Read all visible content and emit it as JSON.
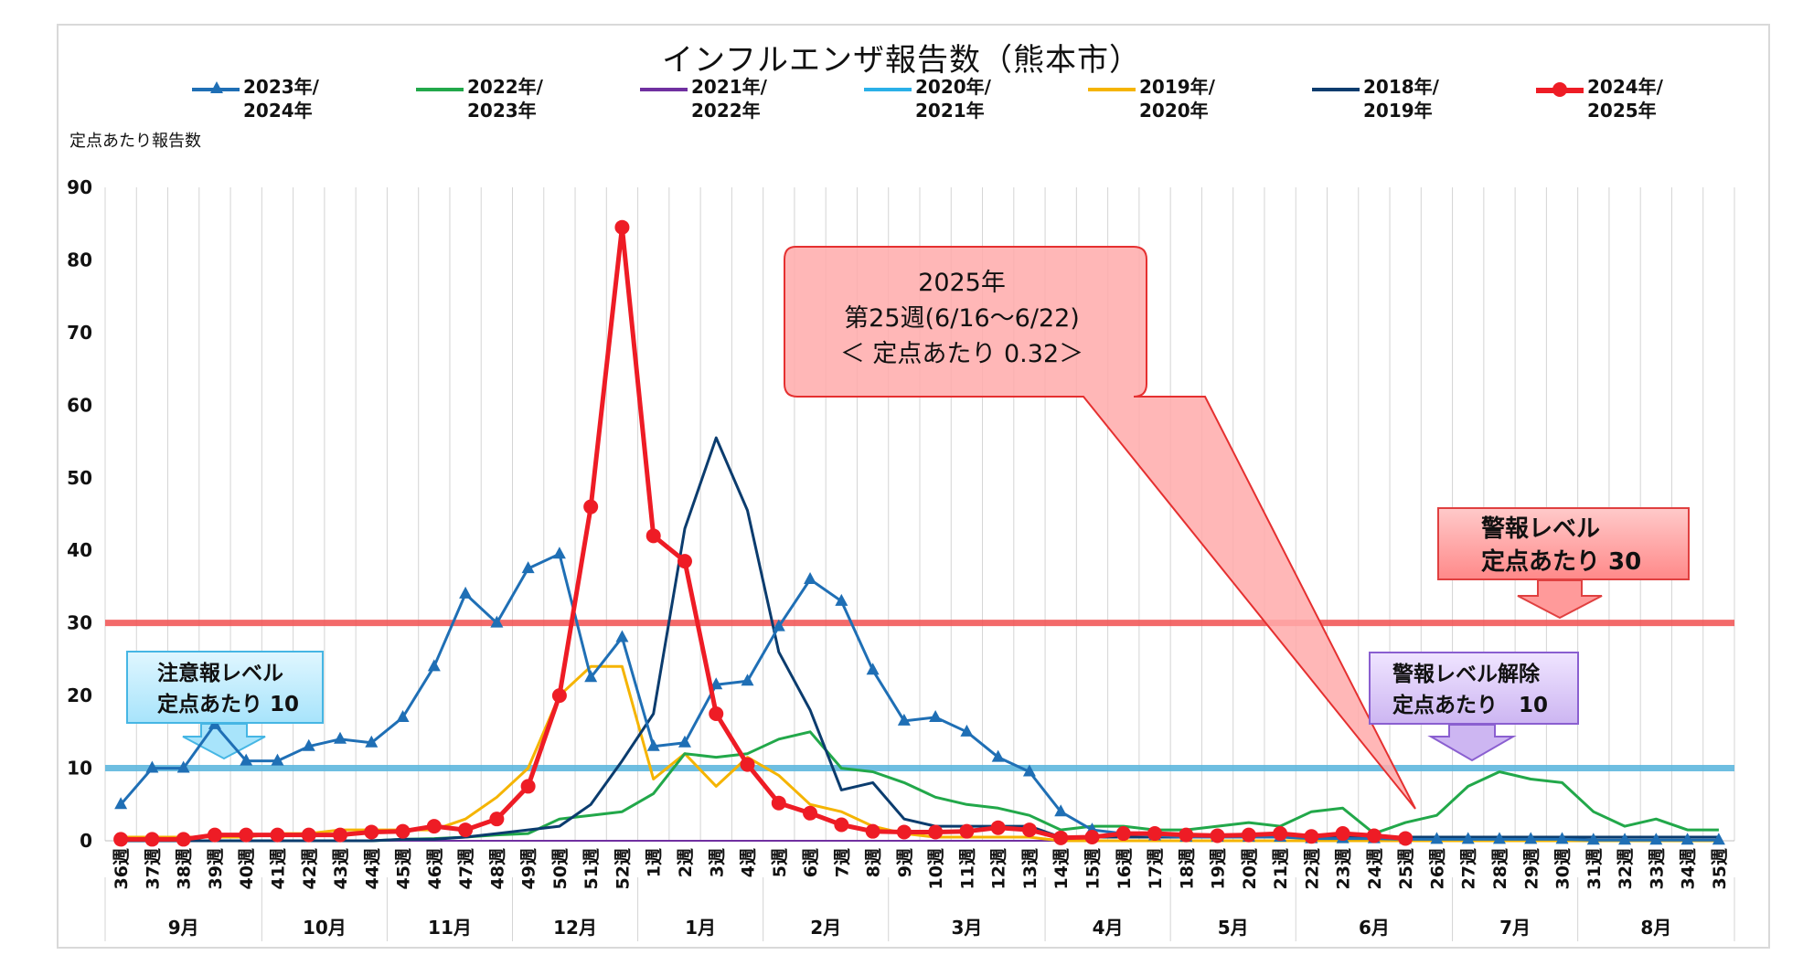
{
  "chart_data": {
    "type": "line",
    "title": "インフルエンザ報告数（熊本市）",
    "ylabel": "定点あたり報告数",
    "ylim": [
      0,
      90
    ],
    "yticks": [
      0,
      10,
      20,
      30,
      40,
      50,
      60,
      70,
      80,
      90
    ],
    "grid": "vertical",
    "legend_position": "top",
    "categories": [
      "36週",
      "37週",
      "38週",
      "39週",
      "40週",
      "41週",
      "42週",
      "43週",
      "44週",
      "45週",
      "46週",
      "47週",
      "48週",
      "49週",
      "50週",
      "51週",
      "52週",
      "1週",
      "2週",
      "3週",
      "4週",
      "5週",
      "6週",
      "7週",
      "8週",
      "9週",
      "10週",
      "11週",
      "12週",
      "13週",
      "14週",
      "15週",
      "16週",
      "17週",
      "18週",
      "19週",
      "20週",
      "21週",
      "22週",
      "23週",
      "24週",
      "25週",
      "26週",
      "27週",
      "28週",
      "29週",
      "30週",
      "31週",
      "32週",
      "33週",
      "34週",
      "35週"
    ],
    "months": [
      {
        "label": "9月",
        "start": 0,
        "end": 4
      },
      {
        "label": "10月",
        "start": 5,
        "end": 8
      },
      {
        "label": "11月",
        "start": 9,
        "end": 12
      },
      {
        "label": "12月",
        "start": 13,
        "end": 16
      },
      {
        "label": "1月",
        "start": 17,
        "end": 20
      },
      {
        "label": "2月",
        "start": 21,
        "end": 24
      },
      {
        "label": "3月",
        "start": 25,
        "end": 29
      },
      {
        "label": "4月",
        "start": 30,
        "end": 33
      },
      {
        "label": "5月",
        "start": 34,
        "end": 37
      },
      {
        "label": "6月",
        "start": 38,
        "end": 42
      },
      {
        "label": "7月",
        "start": 43,
        "end": 46
      },
      {
        "label": "8月",
        "start": 47,
        "end": 51
      }
    ],
    "series": [
      {
        "name": "2023年/\n2024年",
        "color": "#1f6fb5",
        "marker": "triangle",
        "width": 3,
        "values": [
          5,
          10,
          10,
          16,
          11,
          11,
          13,
          14,
          13.5,
          17,
          24,
          34,
          30,
          37.5,
          39.5,
          22.5,
          28,
          13,
          13.5,
          21.5,
          22,
          29.5,
          36,
          33,
          23.5,
          16.5,
          17,
          15,
          11.5,
          9.5,
          4,
          1.5,
          1,
          0.7,
          0.5,
          0.5,
          0.5,
          0.5,
          0.3,
          0.3,
          0.3,
          0.2,
          0.2,
          0.2,
          0.2,
          0.2,
          0.2,
          0.1,
          0.1,
          0.1,
          0.1,
          0.1
        ]
      },
      {
        "name": "2022年/\n2023年",
        "color": "#22a84a",
        "marker": "none",
        "width": 3,
        "values": [
          0,
          0,
          0,
          0,
          0,
          0,
          0,
          0,
          0,
          0.2,
          0.3,
          0.5,
          0.8,
          1,
          3,
          3.5,
          4,
          6.5,
          12,
          11.5,
          12,
          14,
          15,
          10,
          9.5,
          8,
          6,
          5,
          4.5,
          3.5,
          1.5,
          2,
          2,
          1.5,
          1.5,
          2,
          2.5,
          2,
          4,
          4.5,
          1,
          2.5,
          3.5,
          7.5,
          9.5,
          8.5,
          8,
          4,
          2,
          3,
          1.5,
          1.5
        ]
      },
      {
        "name": "2021年/\n2022年",
        "color": "#7030a0",
        "marker": "none",
        "width": 2,
        "values": [
          0,
          0,
          0,
          0,
          0,
          0,
          0,
          0,
          0,
          0,
          0,
          0,
          0,
          0,
          0,
          0,
          0,
          0,
          0,
          0,
          0,
          0,
          0,
          0,
          0,
          0,
          0,
          0,
          0,
          0,
          0,
          0,
          0,
          0,
          0,
          0,
          0,
          0,
          0,
          0,
          0,
          0,
          0,
          0,
          0,
          0,
          0,
          0,
          0,
          0,
          0,
          0
        ]
      },
      {
        "name": "2020年/\n2021年",
        "color": "#2ab0e8",
        "marker": "none",
        "width": 2,
        "values": [
          0,
          0,
          0,
          0,
          0,
          0,
          0,
          0,
          0,
          0,
          0,
          0,
          0,
          0,
          0,
          0,
          0,
          0,
          0,
          0,
          0,
          0,
          0,
          0,
          0,
          0,
          0,
          0,
          0,
          0,
          0,
          0,
          0,
          0,
          0,
          0,
          0,
          0,
          0,
          0,
          0,
          0,
          0,
          0,
          0,
          0,
          0,
          0,
          0,
          0,
          0,
          0
        ]
      },
      {
        "name": "2019年/\n2020年",
        "color": "#f5b400",
        "marker": "none",
        "width": 3,
        "values": [
          0.5,
          0.5,
          0.5,
          0.5,
          0.5,
          1,
          1,
          1.5,
          1.5,
          1.5,
          1.5,
          3,
          6,
          10,
          20,
          24,
          24,
          8.5,
          12,
          7.5,
          11.5,
          9,
          5,
          4,
          2,
          1,
          0.5,
          0.5,
          0.5,
          0.5,
          0,
          0,
          0,
          0,
          0,
          0,
          0,
          0,
          0,
          0,
          0,
          0,
          0,
          0,
          0,
          0,
          0,
          0,
          0,
          0,
          0,
          0
        ]
      },
      {
        "name": "2018年/\n2019年",
        "color": "#0b3c6e",
        "marker": "none",
        "width": 3,
        "values": [
          0,
          0,
          0,
          0,
          0,
          0,
          0,
          0,
          0,
          0.2,
          0.2,
          0.5,
          1,
          1.5,
          2,
          5,
          11,
          17.5,
          43,
          55.5,
          45.5,
          26,
          18,
          7,
          8,
          3,
          2,
          2,
          2,
          2,
          0.5,
          0.5,
          0.5,
          0.5,
          0.5,
          0.5,
          0.5,
          0.5,
          0.5,
          0.5,
          0.5,
          0.5,
          0.5,
          0.5,
          0.5,
          0.5,
          0.5,
          0.5,
          0.5,
          0.5,
          0.5,
          0.5
        ]
      },
      {
        "name": "2024年/\n2025年",
        "color": "#ee1c25",
        "marker": "circle",
        "width": 5,
        "values": [
          0.2,
          0.2,
          0.2,
          0.8,
          0.8,
          0.8,
          0.8,
          0.8,
          1.2,
          1.3,
          2,
          1.5,
          3,
          7.5,
          20,
          46,
          84.5,
          42,
          38.5,
          17.5,
          10.5,
          5.2,
          3.8,
          2.2,
          1.3,
          1.2,
          1.2,
          1.3,
          1.8,
          1.5,
          0.4,
          0.5,
          1,
          1,
          0.8,
          0.7,
          0.8,
          1,
          0.6,
          1,
          0.7,
          0.32,
          null,
          null,
          null,
          null,
          null,
          null,
          null,
          null,
          null,
          null
        ]
      }
    ],
    "reference_lines": [
      {
        "value": 30,
        "color": "#f25a5a"
      },
      {
        "value": 10,
        "color": "#5fb8de"
      }
    ],
    "annotations": {
      "callout": [
        "2025年",
        "第25週(6/16～6/22)",
        "＜ 定点あたり  0.32＞"
      ],
      "warning": [
        "警報レベル",
        "定点あたり 30"
      ],
      "notice": [
        "注意報レベル",
        "定点あたり 10"
      ],
      "release": [
        "警報レベル解除",
        "定点あたり　10"
      ]
    }
  }
}
